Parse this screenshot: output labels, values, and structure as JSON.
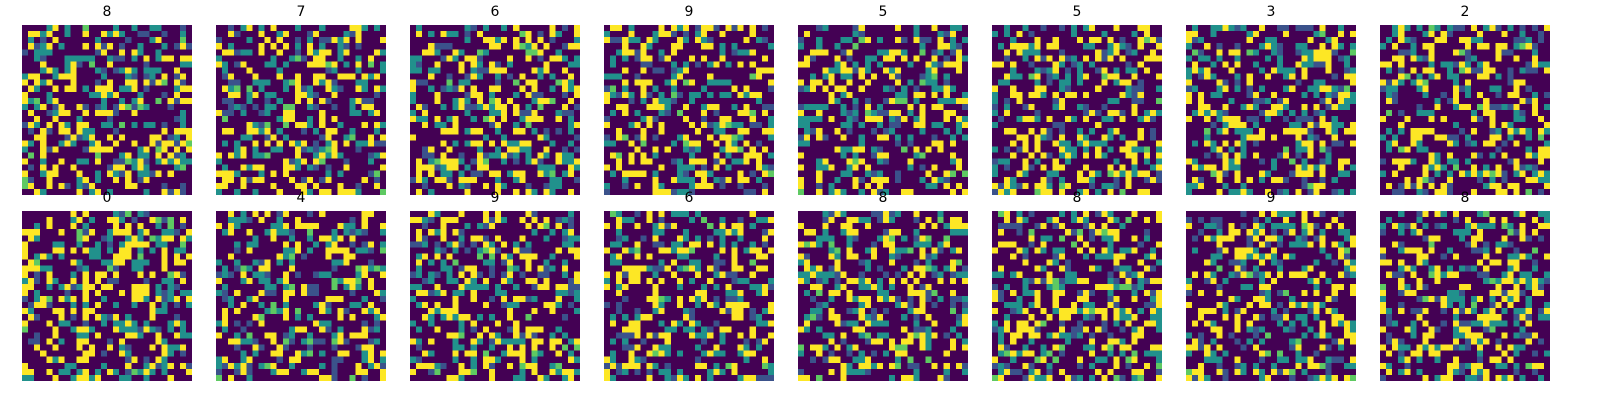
{
  "chart_data": {
    "type": "heatmap",
    "colormap": "viridis",
    "palette": [
      "#440154",
      "#3b528b",
      "#21918c",
      "#5ec962",
      "#fde725"
    ],
    "grid": false,
    "axes_visible": false,
    "cells_per_side": 28,
    "panels": [
      {
        "title": "8",
        "seed": 11
      },
      {
        "title": "7",
        "seed": 23
      },
      {
        "title": "6",
        "seed": 37
      },
      {
        "title": "9",
        "seed": 41
      },
      {
        "title": "5",
        "seed": 53
      },
      {
        "title": "5",
        "seed": 67
      },
      {
        "title": "3",
        "seed": 71
      },
      {
        "title": "2",
        "seed": 89
      },
      {
        "title": "0",
        "seed": 97
      },
      {
        "title": "4",
        "seed": 101
      },
      {
        "title": "9",
        "seed": 113
      },
      {
        "title": "6",
        "seed": 127
      },
      {
        "title": "8",
        "seed": 131
      },
      {
        "title": "8",
        "seed": 149
      },
      {
        "title": "9",
        "seed": 157
      },
      {
        "title": "8",
        "seed": 163
      }
    ]
  }
}
